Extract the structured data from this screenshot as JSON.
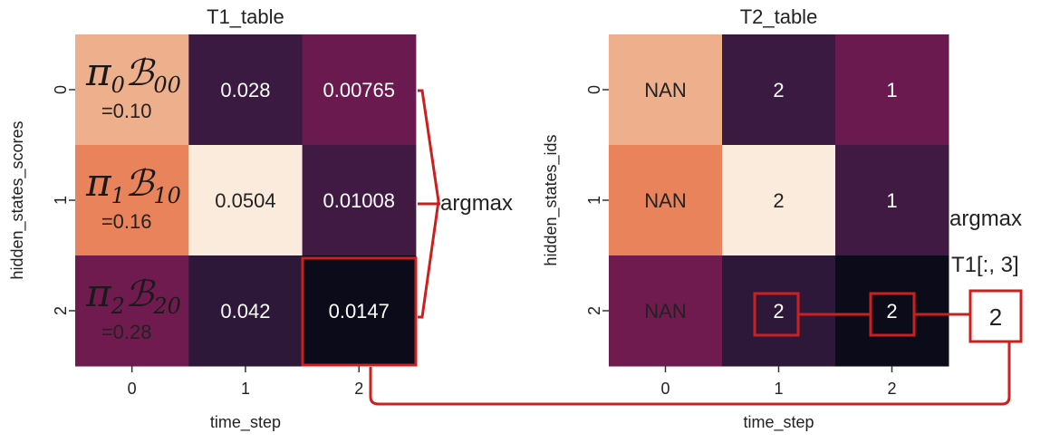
{
  "chart_data": [
    {
      "type": "heatmap",
      "title": "T1_table",
      "xlabel": "time_step",
      "ylabel": "hidden_states_scores",
      "x_ticks": [
        "0",
        "1",
        "2"
      ],
      "y_ticks": [
        "0",
        "1",
        "2"
      ],
      "cells": [
        [
          {
            "text": "",
            "color": "#eeaf8c",
            "font_color": "#222222"
          },
          {
            "text": "0.028",
            "color": "#3a1a41",
            "font_color": "#ffffff"
          },
          {
            "text": "0.00765",
            "color": "#6a1a4f",
            "font_color": "#ffffff"
          }
        ],
        [
          {
            "text": "",
            "color": "#e8835c",
            "font_color": "#222222"
          },
          {
            "text": "0.0504",
            "color": "#faebdd",
            "font_color": "#222222"
          },
          {
            "text": "0.01008",
            "color": "#411a44",
            "font_color": "#ffffff"
          }
        ],
        [
          {
            "text": "",
            "color": "#701b4f",
            "font_color": "#222222"
          },
          {
            "text": "0.042",
            "color": "#2e1839",
            "font_color": "#ffffff"
          },
          {
            "text": "0.0147",
            "color": "#0b0b1a",
            "font_color": "#ffffff"
          }
        ]
      ],
      "formula_cells": [
        {
          "pi_sub": "0",
          "b_sub": "00",
          "value": "=0.10"
        },
        {
          "pi_sub": "1",
          "b_sub": "10",
          "value": "=0.16"
        },
        {
          "pi_sub": "2",
          "b_sub": "20",
          "value": "=0.28"
        }
      ]
    },
    {
      "type": "heatmap",
      "title": "T2_table",
      "xlabel": "time_step",
      "ylabel": "hidden_states_ids",
      "x_ticks": [
        "0",
        "1",
        "2"
      ],
      "y_ticks": [
        "0",
        "1",
        "2"
      ],
      "cells": [
        [
          {
            "text": "NAN",
            "color": "#eeaf8c",
            "font_color": "#222222"
          },
          {
            "text": "2",
            "color": "#3a1a41",
            "font_color": "#ffffff"
          },
          {
            "text": "1",
            "color": "#6a1a4f",
            "font_color": "#ffffff"
          }
        ],
        [
          {
            "text": "NAN",
            "color": "#e8835c",
            "font_color": "#222222"
          },
          {
            "text": "2",
            "color": "#faebdd",
            "font_color": "#222222"
          },
          {
            "text": "1",
            "color": "#411a44",
            "font_color": "#ffffff"
          }
        ],
        [
          {
            "text": "NAN",
            "color": "#701b4f",
            "font_color": "#222222"
          },
          {
            "text": "2",
            "color": "#2e1839",
            "font_color": "#ffffff"
          },
          {
            "text": "2",
            "color": "#0b0b1a",
            "font_color": "#ffffff"
          }
        ]
      ]
    }
  ],
  "annotations": {
    "argmax_middle": "argmax",
    "argmax_right": "argmax",
    "argmax_right_sub": "T1[:, 3]",
    "result_box": "2"
  },
  "colors": {
    "highlight": "#cc1f1f"
  }
}
